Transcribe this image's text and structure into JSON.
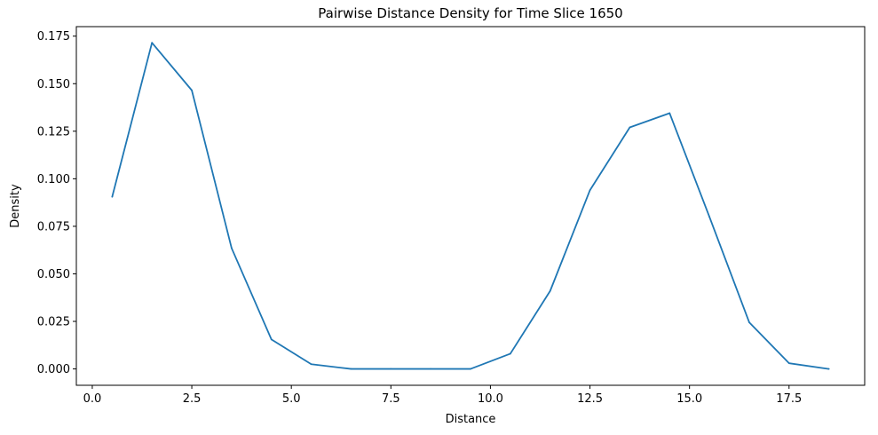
{
  "chart_data": {
    "type": "line",
    "title": "Pairwise Distance Density for Time Slice 1650",
    "xlabel": "Distance",
    "ylabel": "Density",
    "xlim": [
      -0.4,
      19.4
    ],
    "ylim": [
      -0.0086,
      0.18
    ],
    "xticks": [
      0.0,
      2.5,
      5.0,
      7.5,
      10.0,
      12.5,
      15.0,
      17.5
    ],
    "xtick_labels": [
      "0.0",
      "2.5",
      "5.0",
      "7.5",
      "10.0",
      "12.5",
      "15.0",
      "17.5"
    ],
    "yticks": [
      0.0,
      0.025,
      0.05,
      0.075,
      0.1,
      0.125,
      0.15,
      0.175
    ],
    "ytick_labels": [
      "0.000",
      "0.025",
      "0.050",
      "0.075",
      "0.100",
      "0.125",
      "0.150",
      "0.175"
    ],
    "grid": false,
    "series": [
      {
        "color": "#1f77b4",
        "x": [
          0.5,
          1.5,
          2.5,
          3.5,
          4.5,
          5.5,
          6.5,
          7.5,
          8.5,
          9.5,
          10.5,
          11.5,
          12.5,
          13.5,
          14.5,
          15.5,
          16.5,
          17.5,
          18.5
        ],
        "y": [
          0.0905,
          0.1715,
          0.1465,
          0.0635,
          0.0155,
          0.0025,
          0.0,
          0.0,
          0.0,
          0.0,
          0.008,
          0.041,
          0.094,
          0.127,
          0.1345,
          0.08,
          0.0245,
          0.003,
          0.0
        ]
      }
    ]
  }
}
